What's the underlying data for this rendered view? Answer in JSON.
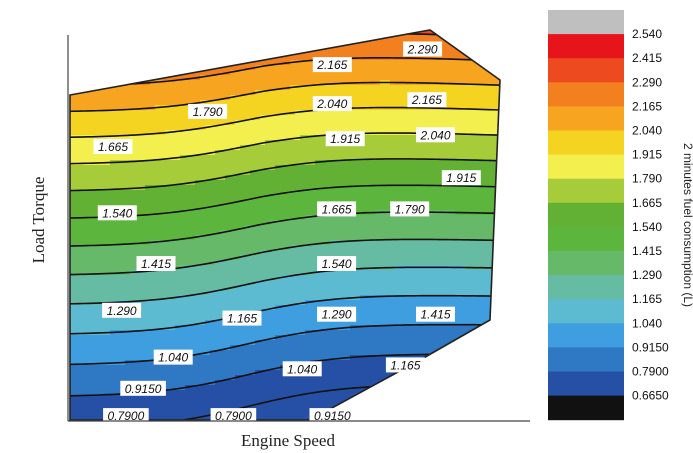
{
  "chart_data": {
    "type": "heatmap",
    "subtype": "filled-contour",
    "title": "",
    "xlabel": "Engine Speed",
    "ylabel": "Load Torque",
    "colorbar": {
      "title": "2 minutes fuel consumption (L)",
      "levels": [
        "2.540",
        "2.415",
        "2.290",
        "2.165",
        "2.040",
        "1.915",
        "1.790",
        "1.665",
        "1.540",
        "1.415",
        "1.290",
        "1.165",
        "1.040",
        "0.9150",
        "0.7900",
        "0.6650"
      ],
      "colors": [
        "#bfbfbf",
        "#e8141c",
        "#ee4a1f",
        "#f3801e",
        "#f7a521",
        "#f4d421",
        "#f2ef4f",
        "#a6cc3a",
        "#62b135",
        "#5cb63d",
        "#67b96a",
        "#66bba3",
        "#5cbad1",
        "#3f9ee0",
        "#2f78c3",
        "#2550a6",
        "#111111"
      ]
    },
    "contour_labels": [
      {
        "text": "2.290",
        "x": 0.82,
        "y": 0.95
      },
      {
        "text": "2.165",
        "x": 0.61,
        "y": 0.91
      },
      {
        "text": "2.040",
        "x": 0.61,
        "y": 0.81
      },
      {
        "text": "2.165",
        "x": 0.83,
        "y": 0.82
      },
      {
        "text": "1.790",
        "x": 0.32,
        "y": 0.79
      },
      {
        "text": "1.915",
        "x": 0.64,
        "y": 0.72
      },
      {
        "text": "2.040",
        "x": 0.85,
        "y": 0.73
      },
      {
        "text": "1.665",
        "x": 0.1,
        "y": 0.7
      },
      {
        "text": "1.915",
        "x": 0.91,
        "y": 0.62
      },
      {
        "text": "1.540",
        "x": 0.11,
        "y": 0.53
      },
      {
        "text": "1.665",
        "x": 0.62,
        "y": 0.54
      },
      {
        "text": "1.790",
        "x": 0.79,
        "y": 0.54
      },
      {
        "text": "1.415",
        "x": 0.2,
        "y": 0.4
      },
      {
        "text": "1.540",
        "x": 0.62,
        "y": 0.4
      },
      {
        "text": "1.290",
        "x": 0.12,
        "y": 0.28
      },
      {
        "text": "1.165",
        "x": 0.4,
        "y": 0.26
      },
      {
        "text": "1.290",
        "x": 0.62,
        "y": 0.27
      },
      {
        "text": "1.415",
        "x": 0.85,
        "y": 0.27
      },
      {
        "text": "1.040",
        "x": 0.24,
        "y": 0.16
      },
      {
        "text": "1.165",
        "x": 0.78,
        "y": 0.14
      },
      {
        "text": "1.040",
        "x": 0.54,
        "y": 0.13
      },
      {
        "text": "0.9150",
        "x": 0.17,
        "y": 0.08
      },
      {
        "text": "0.7900",
        "x": 0.13,
        "y": 0.01
      },
      {
        "text": "0.7900",
        "x": 0.38,
        "y": 0.01
      },
      {
        "text": "0.9150",
        "x": 0.61,
        "y": 0.01
      }
    ],
    "grid": false,
    "legend": "right-colorbar"
  }
}
